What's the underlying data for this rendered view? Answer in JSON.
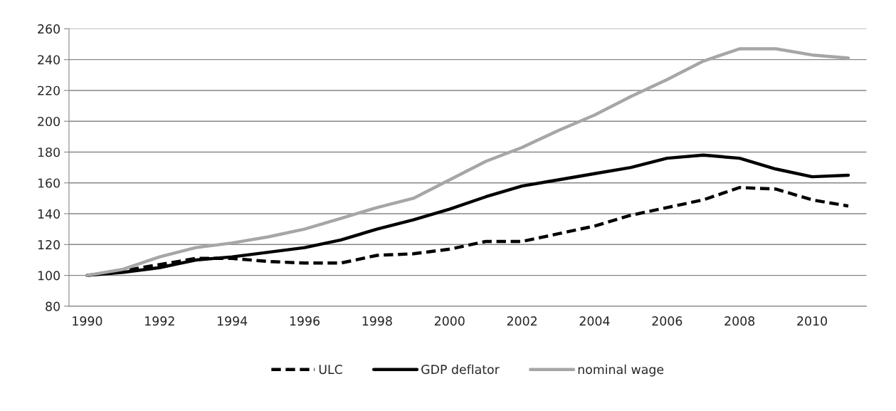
{
  "chart_data": {
    "type": "line",
    "categories": [
      "1990",
      null,
      "1992",
      null,
      "1994",
      null,
      "1996",
      null,
      "1998",
      null,
      "2000",
      null,
      "2002",
      null,
      "2004",
      null,
      "2006",
      null,
      "2008",
      null,
      "2010",
      null
    ],
    "series": [
      {
        "name": "ULC",
        "color": "#000000",
        "line_style": "dashed",
        "values": [
          100,
          103,
          107,
          111,
          111,
          109,
          108,
          108,
          113,
          114,
          117,
          122,
          122,
          127,
          132,
          139,
          144,
          149,
          157,
          156,
          149,
          145
        ]
      },
      {
        "name": "GDP deflator",
        "color": "#000000",
        "line_style": "solid",
        "values": [
          100,
          102,
          105,
          110,
          112,
          115,
          118,
          123,
          130,
          136,
          143,
          151,
          158,
          162,
          166,
          170,
          176,
          178,
          176,
          169,
          164,
          165
        ]
      },
      {
        "name": "nominal wage",
        "color": "#a6a6a6",
        "line_style": "solid",
        "values": [
          100,
          104,
          112,
          118,
          121,
          125,
          130,
          137,
          144,
          150,
          162,
          174,
          183,
          194,
          204,
          216,
          227,
          239,
          247,
          247,
          243,
          241
        ]
      }
    ],
    "ylim": [
      80,
      260
    ],
    "yticks": [
      80,
      100,
      120,
      140,
      160,
      180,
      200,
      220,
      240,
      260
    ],
    "grid": "y",
    "legend": "bottom",
    "marker": "none"
  }
}
